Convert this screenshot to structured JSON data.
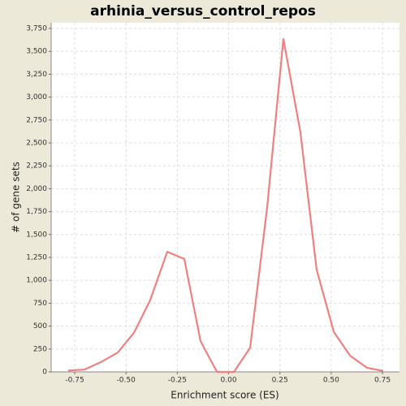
{
  "chart_data": {
    "type": "line",
    "title": "arhinia_versus_control_repos",
    "x_label": "Enrichment score (ES)",
    "y_label": "# of gene sets",
    "x": [
      -0.782,
      -0.703,
      -0.624,
      -0.541,
      -0.462,
      -0.383,
      -0.299,
      -0.216,
      -0.137,
      -0.057,
      0.026,
      0.105,
      0.188,
      0.267,
      0.35,
      0.429,
      0.513,
      0.592,
      0.675,
      0.754
    ],
    "series": [
      {
        "color": "#f08080",
        "values": [
          15,
          25,
          105,
          210,
          425,
          780,
          1312,
          1232,
          337,
          0,
          0,
          265,
          1800,
          3635,
          2615,
          1117,
          435,
          177,
          45,
          10
        ]
      }
    ],
    "xlim": [
      -0.865,
      0.833
    ],
    "ylim": [
      0,
      3812
    ],
    "xticks": [
      -0.75,
      {
        "value": -0.5,
        "label": "-0.50"
      },
      -0.25,
      {
        "value": 0,
        "label": "0.00"
      },
      0.25,
      {
        "value": 0.5,
        "label": "0.50"
      },
      0.75
    ],
    "yticks": [
      0,
      250,
      500,
      750,
      {
        "value": 1000,
        "label": "1,000"
      },
      {
        "value": 1250,
        "label": "1,250"
      },
      {
        "value": 1500,
        "label": "1,500"
      },
      {
        "value": 1750,
        "label": "1,750"
      },
      {
        "value": 2000,
        "label": "2,000"
      },
      {
        "value": 2250,
        "label": "2,250"
      },
      {
        "value": 2500,
        "label": "2,500"
      },
      {
        "value": 2750,
        "label": "2,750"
      },
      {
        "value": 3000,
        "label": "3,000"
      },
      {
        "value": 3250,
        "label": "3,250"
      },
      {
        "value": 3500,
        "label": "3,500"
      },
      {
        "value": 3750,
        "label": "3,750"
      }
    ],
    "grid": true
  }
}
